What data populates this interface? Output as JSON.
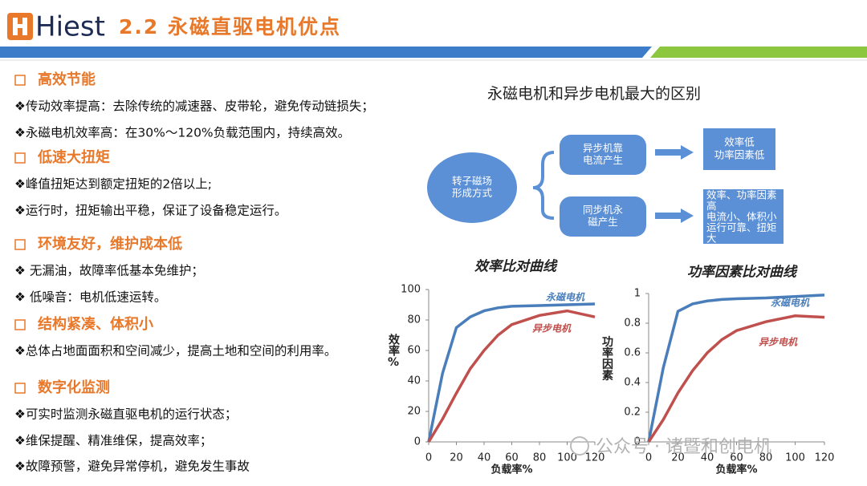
{
  "logo": "Hiest",
  "header": {
    "title": "2.2 永磁直驱电机优点"
  },
  "sections": [
    {
      "heading": "高效节能",
      "items": [
        "❖传动效率提高：去除传统的减速器、皮带轮，避免传动链损失；",
        "❖永磁电机效率高：在30%～120%负载范围内，持续高效。"
      ]
    },
    {
      "heading": "低速大扭矩",
      "items": [
        "❖峰值扭矩达到额定扭矩的2倍以上;",
        "❖运行时，扭矩输出平稳，保证了设备稳定运行。"
      ]
    },
    {
      "heading": "环境友好，维护成本低",
      "items": [
        "❖ 无漏油，故障率低基本免维护；",
        "❖ 低噪音：电机低速运转。"
      ]
    },
    {
      "heading": "结构紧凑、体积小",
      "items": [
        "❖总体占地面面积和空间减少，提高土地和空间的利用率。"
      ]
    },
    {
      "heading": "数字化监测",
      "items": [
        "❖可实时监测永磁直驱电机的运行状态；",
        "❖维保提醒、精准维保，提高效率；",
        "❖故障预警，避免异常停机，避免发生事故"
      ]
    }
  ],
  "diagram": {
    "title": "永磁电机和异步电机最大的区别",
    "nodes": [
      {
        "lines": [
          "转子磁场",
          "形成方式"
        ]
      },
      {
        "lines": [
          "异步机靠",
          "电流产生"
        ]
      },
      {
        "lines": [
          "同步机永",
          "磁产生"
        ]
      },
      {
        "lines": [
          "效率低",
          "功率因素低"
        ]
      },
      {
        "lines": [
          "效率、功率因素",
          "高",
          "电流小、体积小",
          "运行可靠、扭矩",
          "大"
        ]
      }
    ]
  },
  "chart_data": [
    {
      "type": "line",
      "title": "效率比对曲线",
      "x_label": "负载率%",
      "y_label": "效率%",
      "x": [
        0,
        10,
        20,
        30,
        40,
        50,
        60,
        80,
        100,
        120
      ],
      "series": [
        {
          "name": "永磁电机",
          "color": "#4a7ebb",
          "values": [
            0,
            45,
            75,
            82,
            86,
            88,
            89,
            89.5,
            90,
            90.5
          ]
        },
        {
          "name": "异步电机",
          "color": "#c0504d",
          "values": [
            0,
            15,
            32,
            48,
            60,
            70,
            77,
            83,
            86,
            82
          ]
        }
      ],
      "xlim": [
        0,
        120
      ],
      "xticks": [
        0,
        20,
        40,
        60,
        80,
        100,
        120
      ],
      "ylim": [
        0,
        100
      ],
      "yticks": [
        0,
        20,
        40,
        60,
        80,
        100
      ]
    },
    {
      "type": "line",
      "title": "功率因素比对曲线",
      "x_label": "负载率%",
      "y_label": "功率因素",
      "x": [
        0,
        10,
        20,
        30,
        40,
        50,
        60,
        80,
        100,
        120
      ],
      "series": [
        {
          "name": "永磁电机",
          "color": "#4a7ebb",
          "values": [
            0,
            0.5,
            0.88,
            0.93,
            0.95,
            0.96,
            0.965,
            0.97,
            0.98,
            0.99
          ]
        },
        {
          "name": "异步电机",
          "color": "#c0504d",
          "values": [
            0,
            0.15,
            0.33,
            0.48,
            0.6,
            0.69,
            0.75,
            0.81,
            0.85,
            0.84
          ]
        }
      ],
      "xlim": [
        0,
        120
      ],
      "xticks": [
        0,
        20,
        40,
        60,
        80,
        100,
        120
      ],
      "ylim": [
        0,
        1
      ],
      "yticks": [
        0,
        0.2,
        0.4,
        0.6,
        0.8,
        1
      ]
    }
  ],
  "watermark": "公众号 · 诸暨和创电机"
}
